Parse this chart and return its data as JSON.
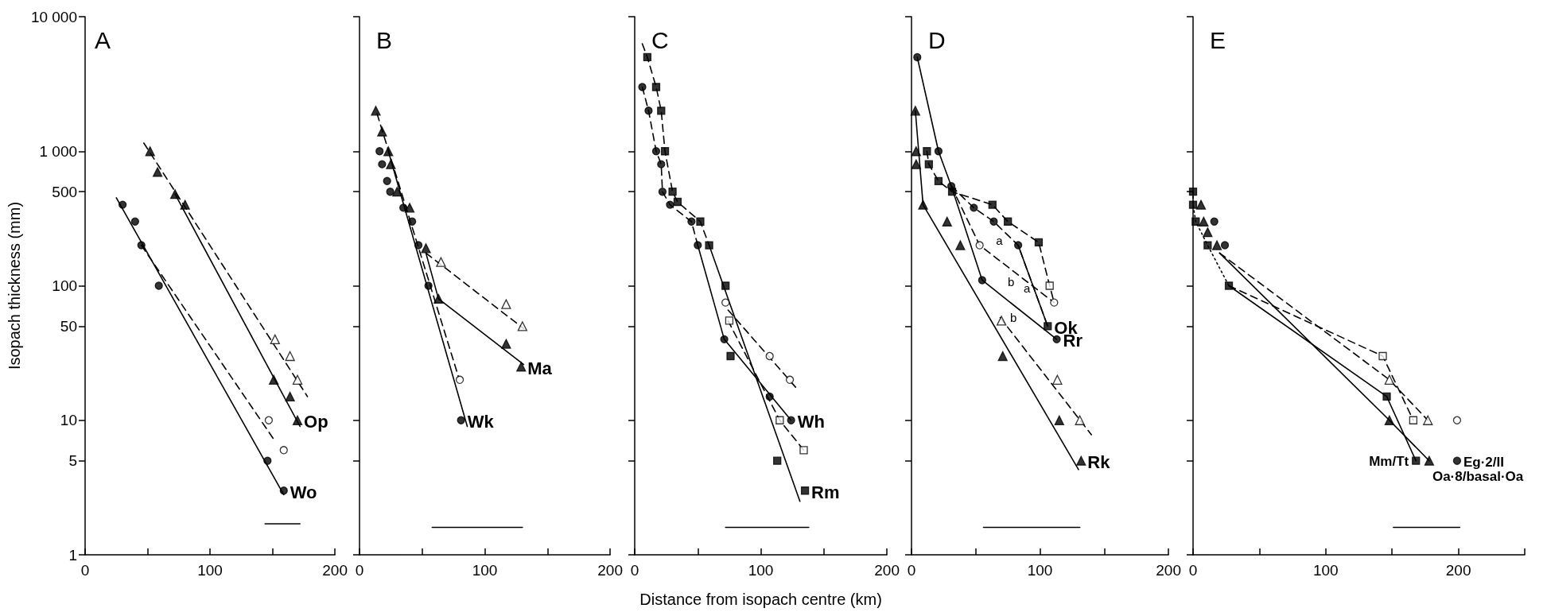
{
  "chart_data": [
    {
      "type": "scatter",
      "title": "A",
      "ylabel": "Isopach thickness (mm)",
      "log": "y",
      "xlim": [
        0,
        200
      ],
      "xticks": [
        0,
        {
          "value": 50,
          "label": null
        },
        100,
        {
          "value": 150,
          "label": null
        },
        200
      ],
      "ylim": [
        1,
        10000
      ],
      "yticks": [
        1,
        5,
        10,
        50,
        100,
        500,
        {
          "value": 1000,
          "label": "1 000"
        },
        {
          "value": 10000,
          "label": "10 000"
        }
      ],
      "series": [
        {
          "name": "Wo",
          "marker": "circle",
          "color": "#000000",
          "x": [
            30,
            40,
            45,
            59,
            146,
            159
          ],
          "values": [
            400,
            300,
            200,
            100,
            5,
            3
          ]
        },
        {
          "marker": "circle",
          "color": "#ffffff",
          "x": [
            147,
            159
          ],
          "values": [
            10,
            6
          ]
        },
        {
          "name": "Op",
          "marker": "triangle",
          "color": "#000000",
          "x": [
            52,
            58,
            72,
            80,
            151,
            164,
            170
          ],
          "values": [
            1000,
            700,
            480,
            400,
            20,
            15,
            10
          ]
        },
        {
          "marker": "triangle",
          "color": "#ffffff",
          "x": [
            152,
            164,
            170
          ],
          "values": [
            40,
            30,
            20
          ]
        },
        {
          "type": "line",
          "line_style": "solid",
          "color": "#000000",
          "x": [
            25,
            159
          ],
          "values": [
            450,
            2.8
          ]
        },
        {
          "type": "line",
          "line_style": "dashed",
          "color": "#000000",
          "x": [
            45,
            152
          ],
          "values": [
            200,
            7
          ]
        },
        {
          "type": "line",
          "line_style": "solid",
          "color": "#000000",
          "x": [
            72,
            172
          ],
          "values": [
            480,
            9
          ]
        },
        {
          "type": "line",
          "line_style": "dashed",
          "color": "#000000",
          "x": [
            47,
            178
          ],
          "values": [
            1150,
            15
          ]
        },
        {
          "type": "line",
          "line_style": "solid",
          "color": "#000000",
          "x": [
            144,
            172
          ],
          "values": [
            1.7,
            1.7
          ]
        }
      ]
    },
    {
      "type": "scatter",
      "title": "B",
      "log": "y",
      "tick_labels": "x",
      "xlim": [
        0,
        200
      ],
      "xticks": [
        0,
        {
          "value": 50,
          "label": null
        },
        100,
        {
          "value": 150,
          "label": null
        },
        200
      ],
      "ylim": [
        1,
        10000
      ],
      "yticks": [
        1,
        5,
        10,
        50,
        100,
        500,
        1000,
        10000
      ],
      "series": [
        {
          "name": "Wk",
          "marker": "circle",
          "color": "#000000",
          "x": [
            16,
            18,
            22,
            24.5,
            35,
            42,
            47,
            55,
            81
          ],
          "values": [
            1000,
            800,
            600,
            500,
            380,
            300,
            200,
            100,
            10
          ]
        },
        {
          "marker": "circle",
          "color": "#ffffff",
          "x": [
            80
          ],
          "values": [
            20
          ]
        },
        {
          "name": "Ma",
          "marker": "triangle",
          "color": "#000000",
          "x": [
            13,
            18,
            23,
            25,
            30,
            40,
            53,
            63,
            117,
            129
          ],
          "values": [
            2000,
            1400,
            1000,
            800,
            500,
            380,
            190,
            80,
            37,
            25
          ]
        },
        {
          "marker": "triangle",
          "color": "#ffffff",
          "x": [
            65,
            117,
            130
          ],
          "values": [
            150,
            73,
            50
          ]
        },
        {
          "type": "line",
          "line_style": "solid",
          "color": "#000000",
          "x": [
            23,
            86
          ],
          "values": [
            1000,
            9
          ]
        },
        {
          "type": "line",
          "line_style": "dashed",
          "color": "#000000",
          "x": [
            14,
            79
          ],
          "values": [
            1900,
            21
          ]
        },
        {
          "type": "line",
          "line_style": "solid",
          "color": "#000000",
          "x": [
            53,
            63,
            131
          ],
          "values": [
            175,
            80,
            26
          ]
        },
        {
          "type": "line",
          "line_style": "dashed",
          "color": "#000000",
          "x": [
            53,
            131
          ],
          "values": [
            175,
            48
          ]
        },
        {
          "type": "line",
          "line_style": "solid",
          "color": "#000000",
          "x": [
            58,
            130
          ],
          "values": [
            1.6,
            1.6
          ]
        }
      ]
    },
    {
      "type": "scatter",
      "title": "C",
      "xlabel": "Distance from isopach centre (km)",
      "log": "y",
      "tick_labels": "x",
      "xlim": [
        0,
        200
      ],
      "xticks": [
        0,
        {
          "value": 50,
          "label": null
        },
        100,
        {
          "value": 150,
          "label": null
        },
        200
      ],
      "ylim": [
        1,
        10000
      ],
      "yticks": [
        1,
        5,
        10,
        50,
        100,
        500,
        1000,
        10000
      ],
      "series": [
        {
          "name": "Wh",
          "marker": "circle",
          "color": "#000000",
          "x": [
            6,
            11,
            17,
            21,
            22,
            28,
            45,
            50,
            71,
            107,
            124
          ],
          "values": [
            3000,
            2000,
            1000,
            800,
            500,
            400,
            300,
            200,
            40,
            15,
            10
          ]
        },
        {
          "marker": "circle",
          "color": "#ffffff",
          "x": [
            72,
            107,
            123
          ],
          "values": [
            75,
            30,
            20
          ]
        },
        {
          "name": "Rm",
          "marker": "square",
          "color": "#000000",
          "x": [
            10,
            17,
            21,
            24,
            30,
            34,
            52,
            59,
            72,
            76,
            113,
            135
          ],
          "values": [
            5000,
            3000,
            2000,
            1000,
            500,
            420,
            300,
            200,
            100,
            30,
            5,
            3
          ]
        },
        {
          "marker": "square",
          "color": "#ffffff",
          "x": [
            75,
            115,
            134
          ],
          "values": [
            55,
            10,
            6
          ]
        },
        {
          "type": "line",
          "line_style": "dashed",
          "color": "#000000",
          "x": [
            6,
            11,
            17,
            21,
            22,
            28,
            45,
            50
          ],
          "values": [
            3000,
            2000,
            1000,
            800,
            500,
            400,
            300,
            200
          ]
        },
        {
          "type": "line",
          "line_style": "solid",
          "color": "#000000",
          "x": [
            50,
            71,
            124
          ],
          "values": [
            200,
            40,
            10
          ]
        },
        {
          "type": "line",
          "line_style": "dashed",
          "color": "#000000",
          "x": [
            6,
            10,
            17,
            21,
            24,
            30,
            34,
            52,
            59
          ],
          "values": [
            6300,
            5000,
            3000,
            2000,
            1000,
            500,
            420,
            300,
            200
          ]
        },
        {
          "type": "line",
          "line_style": "solid",
          "color": "#000000",
          "x": [
            59,
            131
          ],
          "values": [
            200,
            2.5
          ]
        },
        {
          "type": "line",
          "line_style": "dashed",
          "color": "#000000",
          "x": [
            74,
            129
          ],
          "values": [
            66,
            17
          ]
        },
        {
          "type": "line",
          "line_style": "dashed",
          "color": "#000000",
          "x": [
            74,
            115,
            134
          ],
          "values": [
            55,
            10,
            6
          ]
        },
        {
          "type": "line",
          "line_style": "solid",
          "color": "#000000",
          "x": [
            72,
            138
          ],
          "values": [
            1.6,
            1.6
          ]
        }
      ]
    },
    {
      "type": "scatter",
      "title": "D",
      "log": "y",
      "tick_labels": "x",
      "xlim": [
        0,
        200
      ],
      "xticks": [
        0,
        {
          "value": 50,
          "label": null
        },
        100,
        {
          "value": 150,
          "label": null
        },
        200
      ],
      "ylim": [
        1,
        10000
      ],
      "yticks": [
        1,
        5,
        10,
        50,
        100,
        500,
        1000,
        10000
      ],
      "series": [
        {
          "name": "Rr",
          "marker": "circle",
          "color": "#000000",
          "x": [
            4.5,
            21,
            31,
            48.5,
            64,
            83,
            55,
            113
          ],
          "values": [
            5000,
            1000,
            550,
            380,
            300,
            200,
            110,
            40
          ]
        },
        {
          "marker": "circle",
          "color": "#ffffff",
          "x": [
            53,
            111
          ],
          "values": [
            200,
            75
          ]
        },
        {
          "name": "Ok",
          "marker": "square",
          "color": "#000000",
          "x": [
            12,
            13.5,
            21,
            31.6,
            63,
            75,
            99,
            106
          ],
          "values": [
            1000,
            800,
            600,
            500,
            400,
            300,
            210,
            50
          ]
        },
        {
          "marker": "square",
          "color": "#ffffff",
          "x": [
            107.5
          ],
          "values": [
            100
          ]
        },
        {
          "name": "Rk",
          "marker": "triangle",
          "color": "#000000",
          "x": [
            3,
            3.6,
            3.6,
            9,
            27.7,
            38,
            71,
            115,
            132
          ],
          "values": [
            2000,
            1000,
            800,
            400,
            300,
            200,
            30,
            10,
            5
          ]
        },
        {
          "marker": "triangle",
          "color": "#ffffff",
          "x": [
            70,
            113.5,
            131
          ],
          "values": [
            55,
            20,
            10
          ]
        },
        {
          "type": "line",
          "line_style": "solid",
          "color": "#000000",
          "x": [
            4.5,
            21,
            31
          ],
          "values": [
            5000,
            1000,
            550
          ]
        },
        {
          "name": "a",
          "type": "line",
          "line_style": "dashed",
          "color": "#000000",
          "x": [
            31,
            48.5,
            64,
            83,
            106
          ],
          "values": [
            550,
            380,
            300,
            200,
            50
          ]
        },
        {
          "name": "b",
          "type": "line",
          "line_style": "solid",
          "color": "#000000",
          "x": [
            31,
            55,
            113
          ],
          "values": [
            550,
            110,
            40
          ]
        },
        {
          "type": "line",
          "line_style": "dashed",
          "color": "#000000",
          "x": [
            12,
            13.5,
            21,
            31.6,
            63,
            75,
            99,
            107.5,
            111
          ],
          "values": [
            1000,
            800,
            600,
            500,
            400,
            300,
            210,
            100,
            75
          ]
        },
        {
          "name": "a",
          "type": "line",
          "line_style": "solid",
          "color": "#000000",
          "x": [
            83,
            106
          ],
          "values": [
            200,
            50
          ]
        },
        {
          "name": "b",
          "type": "line",
          "line_style": "dashed",
          "color": "#000000",
          "x": [
            31,
            53,
            111
          ],
          "values": [
            550,
            200,
            75
          ]
        },
        {
          "type": "line",
          "line_style": "solid",
          "color": "#000000",
          "x": [
            3,
            9,
            130
          ],
          "values": [
            2000,
            400,
            4.3
          ]
        },
        {
          "type": "line",
          "line_style": "dashed",
          "color": "#000000",
          "x": [
            69,
            140
          ],
          "values": [
            58,
            7.8
          ]
        },
        {
          "type": "line",
          "line_style": "solid",
          "color": "#000000",
          "x": [
            56,
            131
          ],
          "values": [
            1.6,
            1.6
          ]
        }
      ]
    },
    {
      "type": "scatter",
      "title": "E",
      "log": "y",
      "tick_labels": "x",
      "xlim": [
        0,
        250
      ],
      "xticks": [
        0,
        {
          "value": 50,
          "label": null
        },
        100,
        {
          "value": 150,
          "label": null
        },
        200,
        {
          "value": 250,
          "label": null
        }
      ],
      "ylim": [
        1,
        10000
      ],
      "yticks": [
        1,
        5,
        10,
        50,
        100,
        500,
        1000,
        10000
      ],
      "series": [
        {
          "name": "Mm/Tt",
          "marker": "square",
          "color": "#000000",
          "x": [
            0,
            0,
            2,
            11,
            27,
            146,
            168
          ],
          "values": [
            500,
            400,
            300,
            200,
            100,
            15,
            5
          ]
        },
        {
          "marker": "square",
          "color": "#ffffff",
          "x": [
            143,
            166
          ],
          "values": [
            30,
            10
          ]
        },
        {
          "name": "Eg·2/II",
          "marker": "circle",
          "color": "#000000",
          "x": [
            16,
            24,
            199
          ],
          "values": [
            300,
            200,
            5
          ]
        },
        {
          "marker": "circle",
          "color": "#ffffff",
          "x": [
            199
          ],
          "values": [
            10
          ]
        },
        {
          "name": "Oa·8/basal·Oa",
          "marker": "triangle",
          "color": "#000000",
          "x": [
            6,
            8,
            11,
            18,
            148,
            178
          ],
          "values": [
            400,
            300,
            250,
            200,
            10,
            5
          ]
        },
        {
          "marker": "triangle",
          "color": "#ffffff",
          "x": [
            148,
            177
          ],
          "values": [
            20,
            10
          ]
        },
        {
          "type": "line",
          "line_style": "dotted",
          "color": "#000000",
          "x": [
            0,
            0,
            2,
            11,
            27
          ],
          "values": [
            500,
            400,
            300,
            200,
            100
          ]
        },
        {
          "type": "line",
          "line_style": "solid",
          "color": "#000000",
          "x": [
            27,
            146,
            168
          ],
          "values": [
            100,
            15,
            5
          ]
        },
        {
          "type": "line",
          "line_style": "dashed",
          "color": "#000000",
          "x": [
            27,
            143,
            166
          ],
          "values": [
            100,
            30,
            10
          ]
        },
        {
          "type": "line",
          "line_style": "dashed",
          "color": "#000000",
          "x": [
            20,
            148,
            177
          ],
          "values": [
            175,
            20,
            10
          ]
        },
        {
          "type": "line",
          "line_style": "solid",
          "color": "#000000",
          "x": [
            20,
            148,
            178
          ],
          "values": [
            175,
            10,
            5
          ]
        },
        {
          "type": "line",
          "line_style": "solid",
          "color": "#000000",
          "x": [
            151,
            201
          ],
          "values": [
            1.6,
            1.6
          ]
        }
      ]
    }
  ]
}
